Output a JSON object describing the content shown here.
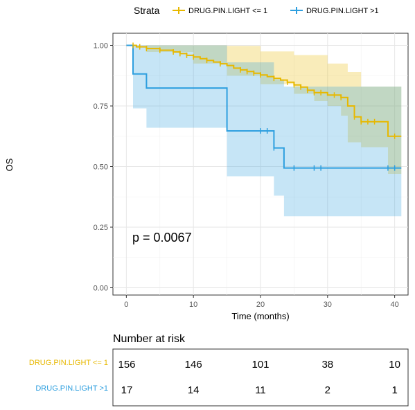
{
  "chart_data": {
    "type": "survival",
    "legend": {
      "title": "Strata",
      "placement": "top",
      "entries": [
        "DRUG.PIN.LIGHT <= 1",
        "DRUG.PIN.LIGHT >1"
      ]
    },
    "xlabel": "Time (months)",
    "ylabel": "OS",
    "xlim": [
      -2,
      42
    ],
    "ylim": [
      -0.03,
      1.05
    ],
    "xticks": [
      "0",
      "10",
      "20",
      "30",
      "40"
    ],
    "yticks": [
      "0.00",
      "0.25",
      "0.50",
      "0.75",
      "1.00"
    ],
    "grid": true,
    "annotation": "p = 0.0067",
    "colors": {
      "low": "#E7B800",
      "high": "#2E9FDF"
    },
    "series": [
      {
        "name": "DRUG.PIN.LIGHT <= 1",
        "steps": [
          [
            0,
            1.0
          ],
          [
            1.5,
            0.994
          ],
          [
            3,
            0.987
          ],
          [
            5,
            0.98
          ],
          [
            7,
            0.973
          ],
          [
            8,
            0.966
          ],
          [
            9,
            0.959
          ],
          [
            10,
            0.952
          ],
          [
            11,
            0.945
          ],
          [
            12,
            0.938
          ],
          [
            13,
            0.931
          ],
          [
            14,
            0.924
          ],
          [
            15,
            0.917
          ],
          [
            16,
            0.906
          ],
          [
            17,
            0.899
          ],
          [
            18,
            0.892
          ],
          [
            19,
            0.885
          ],
          [
            20,
            0.878
          ],
          [
            21,
            0.871
          ],
          [
            22,
            0.864
          ],
          [
            23,
            0.857
          ],
          [
            24,
            0.848
          ],
          [
            25,
            0.837
          ],
          [
            26,
            0.828
          ],
          [
            27,
            0.815
          ],
          [
            28,
            0.805
          ],
          [
            30,
            0.795
          ],
          [
            32,
            0.785
          ],
          [
            33,
            0.75
          ],
          [
            34,
            0.705
          ],
          [
            35,
            0.685
          ],
          [
            39,
            0.625
          ],
          [
            41,
            0.625
          ]
        ],
        "censor": [
          1,
          2,
          3,
          5,
          7,
          8,
          9,
          10,
          12,
          14,
          17,
          18,
          19,
          20,
          22,
          24,
          25,
          26,
          27,
          28,
          29,
          31,
          32,
          34,
          35,
          36,
          37,
          40
        ],
        "ci_upper": [
          [
            0,
            1.0
          ],
          [
            3,
            1.0
          ],
          [
            15,
            0.998
          ],
          [
            20,
            0.975
          ],
          [
            25,
            0.96
          ],
          [
            30,
            0.925
          ],
          [
            33,
            0.89
          ],
          [
            35,
            0.83
          ],
          [
            39,
            0.83
          ],
          [
            41,
            0.83
          ]
        ],
        "ci_lower": [
          [
            0,
            1.0
          ],
          [
            3,
            0.973
          ],
          [
            10,
            0.925
          ],
          [
            15,
            0.875
          ],
          [
            20,
            0.84
          ],
          [
            25,
            0.8
          ],
          [
            28,
            0.77
          ],
          [
            30,
            0.75
          ],
          [
            32,
            0.71
          ],
          [
            33,
            0.6
          ],
          [
            35,
            0.58
          ],
          [
            39,
            0.47
          ],
          [
            41,
            0.47
          ]
        ]
      },
      {
        "name": "DRUG.PIN.LIGHT >1",
        "steps": [
          [
            0,
            1.0
          ],
          [
            1,
            0.882
          ],
          [
            3,
            0.824
          ],
          [
            15,
            0.647
          ],
          [
            22,
            0.577
          ],
          [
            23.5,
            0.494
          ],
          [
            41,
            0.494
          ]
        ],
        "censor": [
          20,
          21,
          22,
          25,
          28,
          29,
          39,
          40
        ],
        "ci_upper": [
          [
            0,
            1.0
          ],
          [
            1,
            1.0
          ],
          [
            3,
            1.0
          ],
          [
            15,
            1.0
          ],
          [
            15,
            0.93
          ],
          [
            22,
            0.86
          ],
          [
            23.5,
            0.83
          ],
          [
            41,
            0.83
          ]
        ],
        "ci_lower": [
          [
            0,
            1.0
          ],
          [
            1,
            0.74
          ],
          [
            3,
            0.66
          ],
          [
            15,
            0.46
          ],
          [
            22,
            0.38
          ],
          [
            23.5,
            0.295
          ],
          [
            41,
            0.295
          ]
        ]
      }
    ],
    "risk_table": {
      "title": "Number at risk",
      "times": [
        0,
        10,
        20,
        30,
        40
      ],
      "rows": [
        {
          "label": "DRUG.PIN.LIGHT <= 1",
          "values": [
            "156",
            "146",
            "101",
            "38",
            "10"
          ]
        },
        {
          "label": "DRUG.PIN.LIGHT >1",
          "values": [
            "17",
            "14",
            "11",
            "2",
            "1"
          ]
        }
      ]
    }
  }
}
